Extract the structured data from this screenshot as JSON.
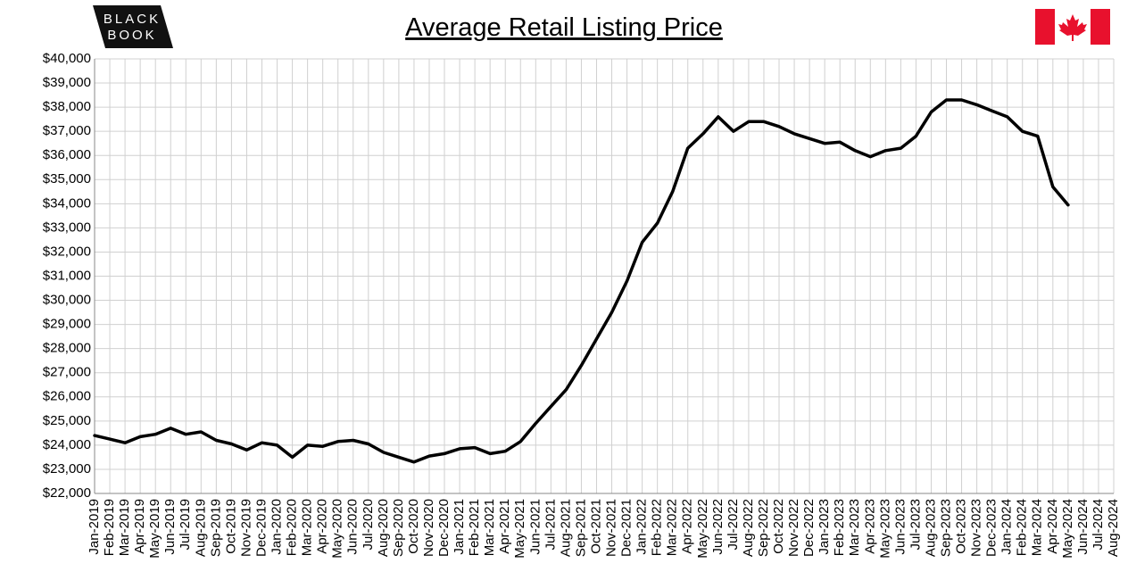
{
  "logo": {
    "line1": "BLACK",
    "line2": "BOOK"
  },
  "chart_data": {
    "type": "line",
    "title": "Average Retail Listing Price",
    "categories": [
      "Jan-2019",
      "Feb-2019",
      "Mar-2019",
      "Apr-2019",
      "May-2019",
      "Jun-2019",
      "Jul-2019",
      "Aug-2019",
      "Sep-2019",
      "Oct-2019",
      "Nov-2019",
      "Dec-2019",
      "Jan-2020",
      "Feb-2020",
      "Mar-2020",
      "Apr-2020",
      "May-2020",
      "Jun-2020",
      "Jul-2020",
      "Aug-2020",
      "Sep-2020",
      "Oct-2020",
      "Nov-2020",
      "Dec-2020",
      "Jan-2021",
      "Feb-2021",
      "Mar-2021",
      "Apr-2021",
      "May-2021",
      "Jun-2021",
      "Jul-2021",
      "Aug-2021",
      "Sep-2021",
      "Oct-2021",
      "Nov-2021",
      "Dec-2021",
      "Jan-2022",
      "Feb-2022",
      "Mar-2022",
      "Apr-2022",
      "May-2022",
      "Jun-2022",
      "Jul-2022",
      "Aug-2022",
      "Sep-2022",
      "Oct-2022",
      "Nov-2022",
      "Dec-2022",
      "Jan-2023",
      "Feb-2023",
      "Mar-2023",
      "Apr-2023",
      "May-2023",
      "Jun-2023",
      "Jul-2023",
      "Aug-2023",
      "Sep-2023",
      "Oct-2023",
      "Nov-2023",
      "Dec-2023",
      "Jan-2024",
      "Feb-2024",
      "Mar-2024",
      "Apr-2024",
      "May-2024",
      "Jun-2024",
      "Jul-2024",
      "Aug-2024"
    ],
    "values": [
      24400,
      24250,
      24100,
      24350,
      24450,
      24700,
      24450,
      24550,
      24200,
      24050,
      23800,
      24100,
      24000,
      23500,
      24000,
      23950,
      24150,
      24200,
      24050,
      23700,
      23500,
      23300,
      23550,
      23650,
      23850,
      23900,
      23650,
      23750,
      24150,
      24900,
      25600,
      26300,
      27300,
      28400,
      29500,
      30800,
      32400,
      33200,
      34500,
      36300,
      36900,
      37600,
      37000,
      37400,
      37400,
      37200,
      36900,
      36700,
      36500,
      36550,
      36200,
      35950,
      36200,
      36300,
      36800,
      37800,
      38300,
      38300,
      38100,
      37850,
      37600,
      37000,
      36800,
      34700,
      33950,
      null,
      null,
      null
    ],
    "color": "#000000",
    "ylim": [
      22000,
      40000
    ],
    "yticks": [
      {
        "value": 22000,
        "label": "$22,000"
      },
      {
        "value": 23000,
        "label": "$23,000"
      },
      {
        "value": 24000,
        "label": "$24,000"
      },
      {
        "value": 25000,
        "label": "$25,000"
      },
      {
        "value": 26000,
        "label": "$26,000"
      },
      {
        "value": 27000,
        "label": "$27,000"
      },
      {
        "value": 28000,
        "label": "$28,000"
      },
      {
        "value": 29000,
        "label": "$29,000"
      },
      {
        "value": 30000,
        "label": "$30,000"
      },
      {
        "value": 31000,
        "label": "$31,000"
      },
      {
        "value": 32000,
        "label": "$32,000"
      },
      {
        "value": 33000,
        "label": "$33,000"
      },
      {
        "value": 34000,
        "label": "$34,000"
      },
      {
        "value": 35000,
        "label": "$35,000"
      },
      {
        "value": 36000,
        "label": "$36,000"
      },
      {
        "value": 37000,
        "label": "$37,000"
      },
      {
        "value": 38000,
        "label": "$38,000"
      },
      {
        "value": 39000,
        "label": "$39,000"
      },
      {
        "value": 40000,
        "label": "$40,000"
      }
    ],
    "grid": true
  }
}
